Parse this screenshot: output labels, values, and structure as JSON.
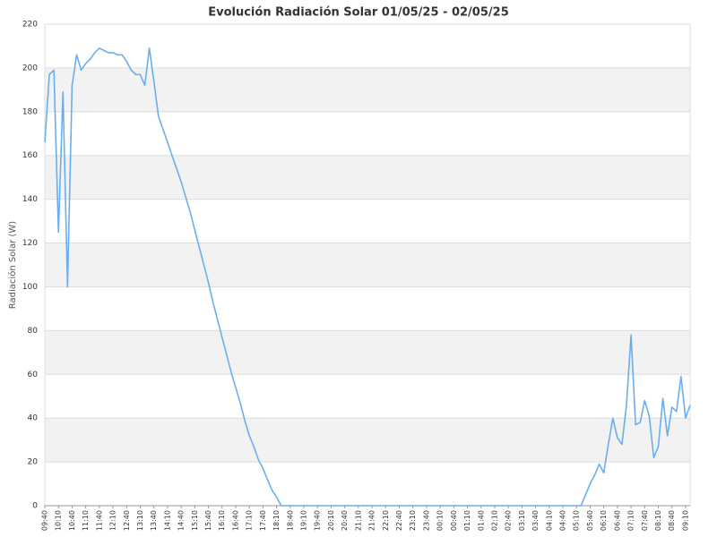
{
  "chart_data": {
    "type": "line",
    "title": "Evolución Radiación Solar 01/05/25 - 02/05/25",
    "y_label": "Radiación Solar (W)",
    "color": "#6aaef0",
    "ylim": [
      0,
      220
    ],
    "yticks": [
      0,
      20,
      40,
      60,
      80,
      100,
      120,
      140,
      160,
      180,
      200,
      220
    ],
    "grid": true,
    "categories": [
      "09:40",
      null,
      null,
      "10:10",
      null,
      null,
      "10:40",
      null,
      null,
      "11:10",
      null,
      null,
      "11:40",
      null,
      null,
      "12:10",
      null,
      null,
      "12:40",
      null,
      null,
      "13:10",
      null,
      null,
      "13:40",
      null,
      null,
      "14:10",
      null,
      null,
      "14:40",
      null,
      null,
      "15:10",
      null,
      null,
      "15:40",
      null,
      null,
      "16:10",
      null,
      null,
      "16:40",
      null,
      null,
      "17:10",
      null,
      null,
      "17:40",
      null,
      null,
      "18:10",
      null,
      null,
      "18:40",
      null,
      null,
      "19:10",
      null,
      null,
      "19:40",
      null,
      null,
      "20:10",
      null,
      null,
      "20:40",
      null,
      null,
      "21:10",
      null,
      null,
      "21:40",
      null,
      null,
      "22:10",
      null,
      null,
      "22:40",
      null,
      null,
      "23:10",
      null,
      null,
      "23:40",
      null,
      null,
      "00:10",
      null,
      null,
      "00:40",
      null,
      null,
      "01:10",
      null,
      null,
      "01:40",
      null,
      null,
      "02:10",
      null,
      null,
      "02:40",
      null,
      null,
      "03:10",
      null,
      null,
      "03:40",
      null,
      null,
      "04:10",
      null,
      null,
      "04:40",
      null,
      null,
      "05:10",
      null,
      null,
      "05:40",
      null,
      null,
      "06:10",
      null,
      null,
      "06:40",
      null,
      null,
      "07:10",
      null,
      null,
      "07:40",
      null,
      null,
      "08:10",
      null,
      null,
      "08:40",
      null,
      null,
      "09:10",
      null
    ],
    "values": [
      166,
      197,
      199,
      125,
      189,
      100,
      192,
      206,
      199,
      202,
      204,
      207,
      209,
      208,
      207,
      207,
      206,
      206,
      203,
      199,
      197,
      197,
      192,
      209,
      194,
      178,
      172,
      166,
      160,
      154,
      148,
      141,
      134,
      126,
      118,
      110,
      102,
      93,
      85,
      77,
      69,
      61,
      54,
      47,
      39,
      32,
      27,
      21,
      17,
      12,
      7,
      4,
      0,
      0,
      0,
      0,
      0,
      0,
      0,
      0,
      0,
      0,
      0,
      0,
      0,
      0,
      0,
      0,
      0,
      0,
      0,
      0,
      0,
      0,
      0,
      0,
      0,
      0,
      0,
      0,
      0,
      0,
      0,
      0,
      0,
      0,
      0,
      0,
      0,
      0,
      0,
      0,
      0,
      0,
      0,
      0,
      0,
      0,
      0,
      0,
      0,
      0,
      0,
      0,
      0,
      0,
      0,
      0,
      0,
      0,
      0,
      0,
      0,
      0,
      0,
      0,
      0,
      0,
      0,
      5,
      10,
      14,
      19,
      15,
      28,
      40,
      31,
      28,
      46,
      78,
      37,
      38,
      48,
      41,
      22,
      27,
      49,
      32,
      45,
      43,
      59,
      40,
      46
    ]
  }
}
